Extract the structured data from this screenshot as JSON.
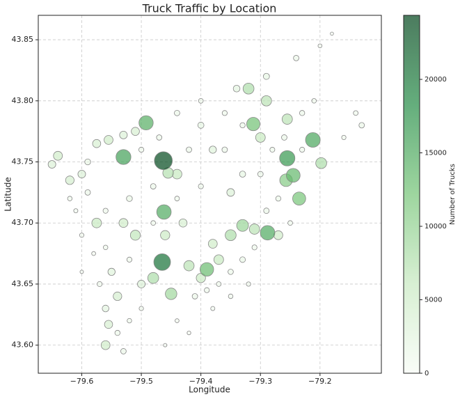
{
  "chart_data": {
    "type": "scatter",
    "title": "Truck Traffic by Location",
    "x_label": "Longitude",
    "y_label": "Latitude",
    "colorbar_label": "Number of Trucks",
    "grid": true,
    "colormap": [
      "#f7fcf5",
      "#c7e9c0",
      "#74c476",
      "#238b45",
      "#00441b"
    ],
    "edge_color": "#888888",
    "xlim": [
      -79.673,
      -79.097
    ],
    "ylim": [
      43.577,
      43.87
    ],
    "clim": [
      0,
      24360
    ],
    "xticks": [
      {
        "value": -79.6,
        "label": "−79.6"
      },
      {
        "value": -79.5,
        "label": "−79.5"
      },
      {
        "value": -79.4,
        "label": "−79.4"
      },
      {
        "value": -79.3,
        "label": "−79.3"
      },
      {
        "value": -79.2,
        "label": "−79.2"
      }
    ],
    "yticks": [
      {
        "value": 43.6,
        "label": "43.60"
      },
      {
        "value": 43.65,
        "label": "43.65"
      },
      {
        "value": 43.7,
        "label": "43.70"
      },
      {
        "value": 43.75,
        "label": "43.75"
      },
      {
        "value": 43.8,
        "label": "43.80"
      },
      {
        "value": 43.85,
        "label": "43.85"
      }
    ],
    "cticks": [
      0,
      5000,
      10000,
      15000,
      20000
    ],
    "x": [
      -79.463,
      -79.465,
      -79.255,
      -79.53,
      -79.492,
      -79.312,
      -79.212,
      -79.288,
      -79.245,
      -79.462,
      -79.39,
      -79.257,
      -79.33,
      -79.45,
      -79.235,
      -79.198,
      -79.455,
      -79.575,
      -79.53,
      -79.32,
      -79.29,
      -79.51,
      -79.35,
      -79.42,
      -79.4,
      -79.37,
      -79.56,
      -79.54,
      -79.64,
      -79.62,
      -79.575,
      -79.555,
      -79.255,
      -79.3,
      -79.44,
      -79.48,
      -79.65,
      -79.6,
      -79.51,
      -79.53,
      -79.46,
      -79.38,
      -79.31,
      -79.27,
      -79.55,
      -79.555,
      -79.5,
      -79.43,
      -79.35,
      -79.38,
      -79.18,
      -79.2,
      -79.24,
      -79.29,
      -79.34,
      -79.14,
      -79.13,
      -79.16,
      -79.4,
      -79.42,
      -79.36,
      -79.33,
      -79.3,
      -79.4,
      -79.44,
      -79.48,
      -79.52,
      -79.56,
      -79.59,
      -79.6,
      -79.58,
      -79.56,
      -79.52,
      -79.41,
      -79.39,
      -79.37,
      -79.35,
      -79.33,
      -79.31,
      -79.29,
      -79.27,
      -79.25,
      -79.23,
      -79.26,
      -79.23,
      -79.21,
      -79.28,
      -79.33,
      -79.36,
      -79.4,
      -79.44,
      -79.47,
      -79.5,
      -79.48,
      -79.5,
      -79.52,
      -79.54,
      -79.53,
      -79.44,
      -79.42,
      -79.46,
      -79.38,
      -79.35,
      -79.32,
      -79.56,
      -79.57,
      -79.6,
      -79.61,
      -79.62,
      -79.59
    ],
    "y": [
      43.751,
      43.668,
      43.753,
      43.754,
      43.782,
      43.781,
      43.768,
      43.692,
      43.739,
      43.709,
      43.662,
      43.735,
      43.698,
      43.642,
      43.72,
      43.749,
      43.741,
      43.7,
      43.7,
      43.81,
      43.8,
      43.69,
      43.69,
      43.665,
      43.655,
      43.67,
      43.6,
      43.64,
      43.755,
      43.735,
      43.765,
      43.768,
      43.785,
      43.77,
      43.74,
      43.655,
      43.748,
      43.74,
      43.775,
      43.772,
      43.69,
      43.683,
      43.695,
      43.69,
      43.66,
      43.617,
      43.65,
      43.7,
      43.725,
      43.76,
      43.855,
      43.845,
      43.835,
      43.82,
      43.81,
      43.79,
      43.78,
      43.77,
      43.78,
      43.76,
      43.76,
      43.74,
      43.74,
      43.73,
      43.72,
      43.73,
      43.72,
      43.71,
      43.725,
      43.69,
      43.675,
      43.68,
      43.67,
      43.64,
      43.645,
      43.65,
      43.66,
      43.67,
      43.68,
      43.71,
      43.72,
      43.7,
      43.76,
      43.77,
      43.79,
      43.8,
      43.76,
      43.78,
      43.79,
      43.8,
      43.79,
      43.77,
      43.76,
      43.7,
      43.63,
      43.62,
      43.61,
      43.595,
      43.62,
      43.61,
      43.6,
      43.63,
      43.64,
      43.65,
      43.63,
      43.65,
      43.66,
      43.71,
      43.72,
      43.75
    ],
    "values": [
      24000,
      20500,
      17000,
      16000,
      14500,
      12500,
      15500,
      15000,
      13500,
      15000,
      13000,
      11000,
      9500,
      9000,
      12000,
      8000,
      7500,
      6000,
      5000,
      8000,
      7000,
      6500,
      8000,
      7000,
      5500,
      6000,
      5000,
      4500,
      5000,
      4500,
      4000,
      5000,
      7000,
      6000,
      6000,
      8000,
      3500,
      3500,
      4000,
      3500,
      5500,
      5000,
      7000,
      5000,
      3000,
      4000,
      3500,
      4000,
      3500,
      3000,
      300,
      600,
      1500,
      2000,
      2500,
      1000,
      1500,
      800,
      2000,
      1500,
      1500,
      2000,
      1500,
      1200,
      1000,
      1500,
      1800,
      1200,
      1500,
      800,
      600,
      900,
      1200,
      1500,
      1200,
      1000,
      1400,
      1600,
      1200,
      1500,
      1300,
      1000,
      1200,
      1500,
      1300,
      900,
      1100,
      1300,
      1200,
      1000,
      1500,
      1400,
      1200,
      1000,
      800,
      900,
      1300,
      1500,
      600,
      500,
      400,
      700,
      900,
      800,
      2500,
      1200,
      400,
      700,
      900,
      1800
    ]
  }
}
